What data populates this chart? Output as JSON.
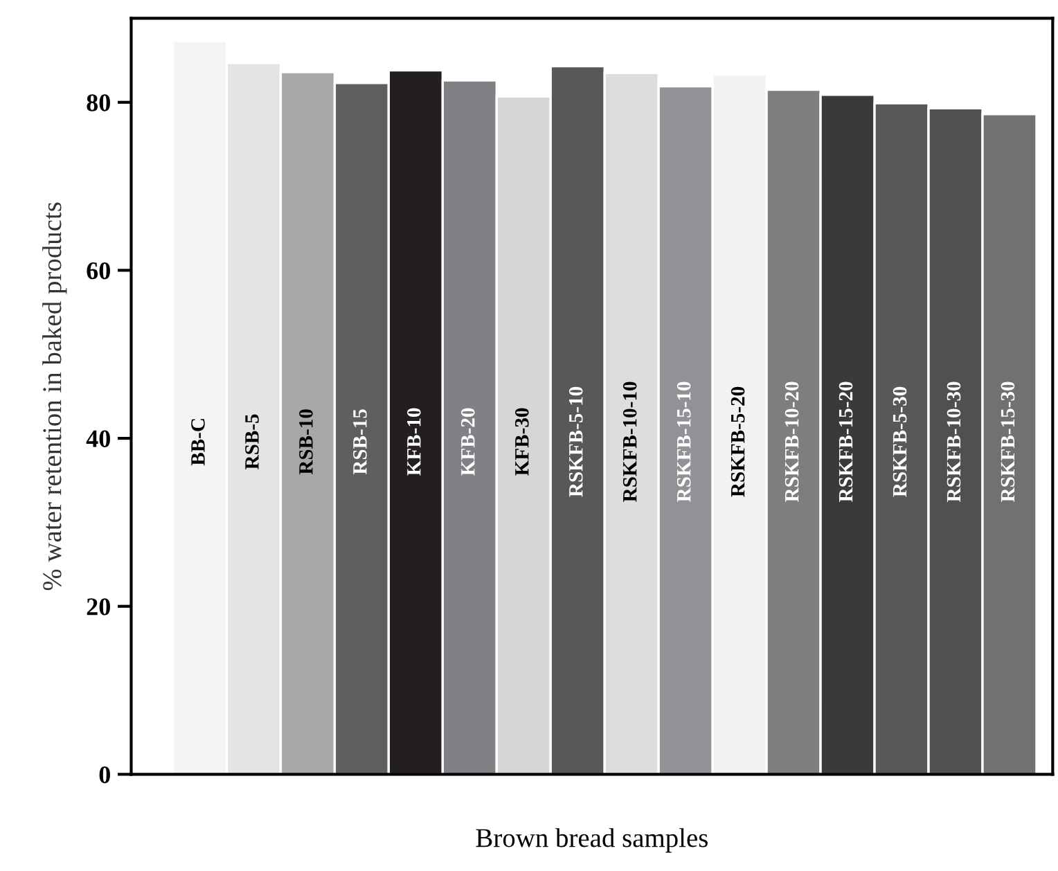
{
  "chart_data": {
    "type": "bar",
    "xlabel": "Brown bread samples",
    "ylabel": "% water retention in baked products",
    "categories": [
      "BB-C",
      "RSB-5",
      "RSB-10",
      "RSB-15",
      "KFB-10",
      "KFB-20",
      "KFB-30",
      "RSKFB-5-10",
      "RSKFB-10-10",
      "RSKFB-15-10",
      "RSKFB-5-20",
      "RSKFB-10-20",
      "RSKFB-15-20",
      "RSKFB-5-30",
      "RSKFB-10-30",
      "RSKFB-15-30"
    ],
    "values": [
      87.3,
      84.7,
      83.6,
      82.3,
      83.8,
      82.6,
      80.7,
      84.3,
      83.5,
      81.9,
      83.3,
      81.5,
      80.9,
      79.9,
      79.3,
      78.6
    ],
    "colors": [
      "#f4f4f4",
      "#e4e4e6",
      "#a7a8aa",
      "#5f5f61",
      "#231f20",
      "#808184",
      "#d5d6d8",
      "#58585a",
      "#dcdddf",
      "#919295",
      "#f2f2f2",
      "#7d7e80",
      "#3a3a3a",
      "#58585a",
      "#505052",
      "#707173"
    ],
    "ylim": [
      0,
      90
    ],
    "yticks": [
      0,
      20,
      40,
      60,
      80
    ],
    "grid": false,
    "legend": false
  }
}
